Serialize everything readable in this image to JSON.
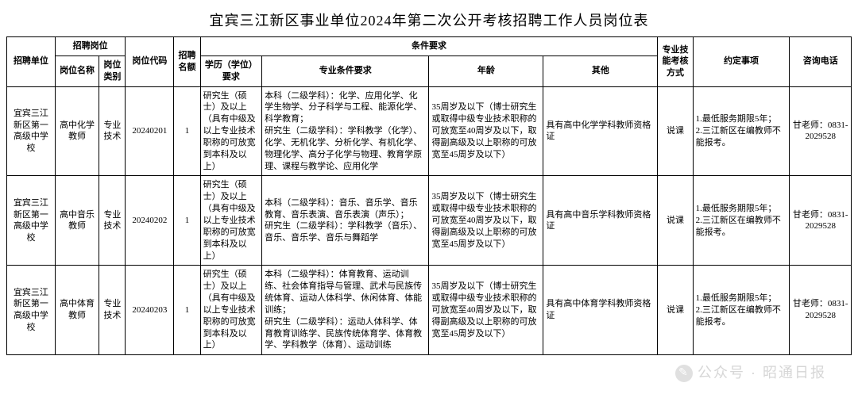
{
  "title": "宜宾三江新区事业单位2024年第二次公开考核招聘工作人员岗位表",
  "headers": {
    "unit": "招聘单位",
    "post_group": "招聘岗位",
    "post_name": "岗位名称",
    "post_type": "岗位类别",
    "post_code": "岗位代码",
    "quota": "招聘名额",
    "req_group": "条件要求",
    "edu": "学历（学位）要求",
    "major": "专业条件要求",
    "age": "年龄",
    "other": "其他",
    "skill": "专业技能考核方式",
    "agree": "约定事项",
    "phone": "咨询电话"
  },
  "rows": [
    {
      "unit": "宜宾三江新区第一高级中学校",
      "post_name": "高中化学教师",
      "post_type": "专业技术",
      "post_code": "20240201",
      "quota": "1",
      "edu": "研究生（硕士）及以上（具有中级及以上专业技术职称的可放宽到本科及以上）",
      "major": "本科（二级学科）：化学、应用化学、化学生物学、分子科学与工程、能源化学、科学教育；\n研究生（二级学科）：学科教学（化学）、化学、无机化学、分析化学、有机化学、物理化学、高分子化学与物理、教育学原理、课程与教学论、应用化学",
      "age": "35周岁及以下（博士研究生或取得中级专业技术职称的可放宽至40周岁及以下，取得副高级及以上职称的可放宽至45周岁及以下）",
      "other": "具有高中化学学科教师资格证",
      "skill": "说课",
      "agree": "1.最低服务期限5年；\n2.三江新区在编教师不能报考。",
      "phone": "甘老师：0831-2029528"
    },
    {
      "unit": "宜宾三江新区第一高级中学校",
      "post_name": "高中音乐教师",
      "post_type": "专业技术",
      "post_code": "20240202",
      "quota": "1",
      "edu": "研究生（硕士）及以上（具有中级及以上专业技术职称的可放宽到本科及以上）",
      "major": "本科（二级学科）：音乐、音乐学、音乐教育、音乐表演、音乐表演（声乐）；\n研究生（二级学科）：学科教学（音乐）、音乐、音乐学、音乐与舞蹈学",
      "age": "35周岁及以下（博士研究生或取得中级专业技术职称的可放宽至40周岁及以下，取得副高级及以上职称的可放宽至45周岁及以下）",
      "other": "具有高中音乐学科教师资格证",
      "skill": "说课",
      "agree": "1.最低服务期限5年；\n2.三江新区在编教师不能报考。",
      "phone": "甘老师：0831-2029528"
    },
    {
      "unit": "宜宾三江新区第一高级中学校",
      "post_name": "高中体育教师",
      "post_type": "专业技术",
      "post_code": "20240203",
      "quota": "1",
      "edu": "研究生（硕士）及以上（具有中级及以上专业技术职称的可放宽到本科及以上）",
      "major": "本科（二级学科）：体育教育、运动训练、社会体育指导与管理、武术与民族传统体育、运动人体科学、休闲体育、体能训练；\n研究生（二级学科）：运动人体科学、体育教育训练学、民族传统体育学、体育教学、学科教学（体育）、运动训练",
      "age": "35周岁及以下（博士研究生或取得中级专业技术职称的可放宽至40周岁及以下，取得副高级及以上职称的可放宽至45周岁及以下）",
      "other": "具有高中体育学科教师资格证",
      "skill": "说课",
      "agree": "1.最低服务期限5年；\n2.三江新区在编教师不能报考。",
      "phone": "甘老师：0831-2029528"
    }
  ],
  "watermark": "公众号 · 昭通日报",
  "colwidths": [
    "55",
    "50",
    "30",
    "55",
    "30",
    "70",
    "190",
    "130",
    "130",
    "40",
    "110",
    "70"
  ],
  "styling": {
    "border_color": "#000000",
    "background": "#ffffff",
    "title_fontsize": 18,
    "body_fontsize": 11,
    "font_family": "SimSun"
  }
}
